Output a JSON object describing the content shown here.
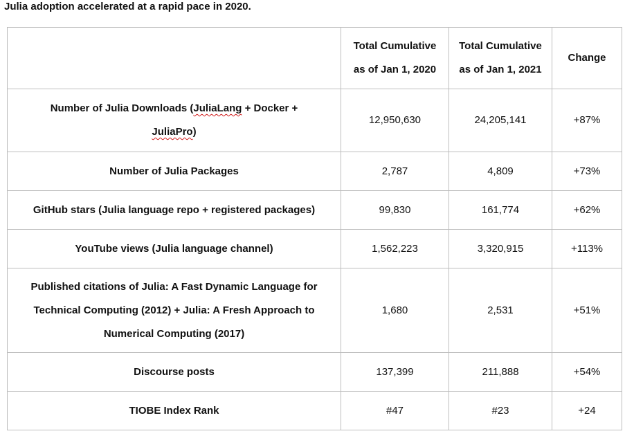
{
  "title": "Julia adoption accelerated at a rapid pace in 2020.",
  "table": {
    "headers": {
      "metric": "",
      "col2_line1": "Total Cumulative",
      "col2_line2": "as of Jan 1, 2020",
      "col3_line1": "Total Cumulative",
      "col3_line2": "as of Jan 1, 2021",
      "change": "Change"
    },
    "rows": [
      {
        "label_parts": [
          "Number of Julia Downloads (",
          "JuliaLang",
          " + Docker +",
          "JuliaPro",
          ")"
        ],
        "v2020": "12,950,630",
        "v2021": "24,205,141",
        "change": "+87%"
      },
      {
        "label": "Number of Julia Packages",
        "v2020": "2,787",
        "v2021": "4,809",
        "change": "+73%"
      },
      {
        "label": "GitHub stars (Julia language repo + registered packages)",
        "v2020": "99,830",
        "v2021": "161,774",
        "change": "+62%"
      },
      {
        "label": "YouTube views (Julia language channel)",
        "v2020": "1,562,223",
        "v2021": "3,320,915",
        "change": "+113%"
      },
      {
        "label_lines": [
          "Published citations of Julia: A Fast Dynamic Language for",
          "Technical Computing (2012) + Julia: A Fresh Approach to",
          "Numerical Computing (2017)"
        ],
        "v2020": "1,680",
        "v2021": "2,531",
        "change": "+51%"
      },
      {
        "label": "Discourse posts",
        "v2020": "137,399",
        "v2021": "211,888",
        "change": "+54%"
      },
      {
        "label": "TIOBE Index Rank",
        "v2020": "#47",
        "v2021": "#23",
        "change": "+24"
      }
    ]
  },
  "colors": {
    "text": "#111111",
    "border": "#bdbdbd",
    "spellcheck_underline": "#d11a1a"
  }
}
